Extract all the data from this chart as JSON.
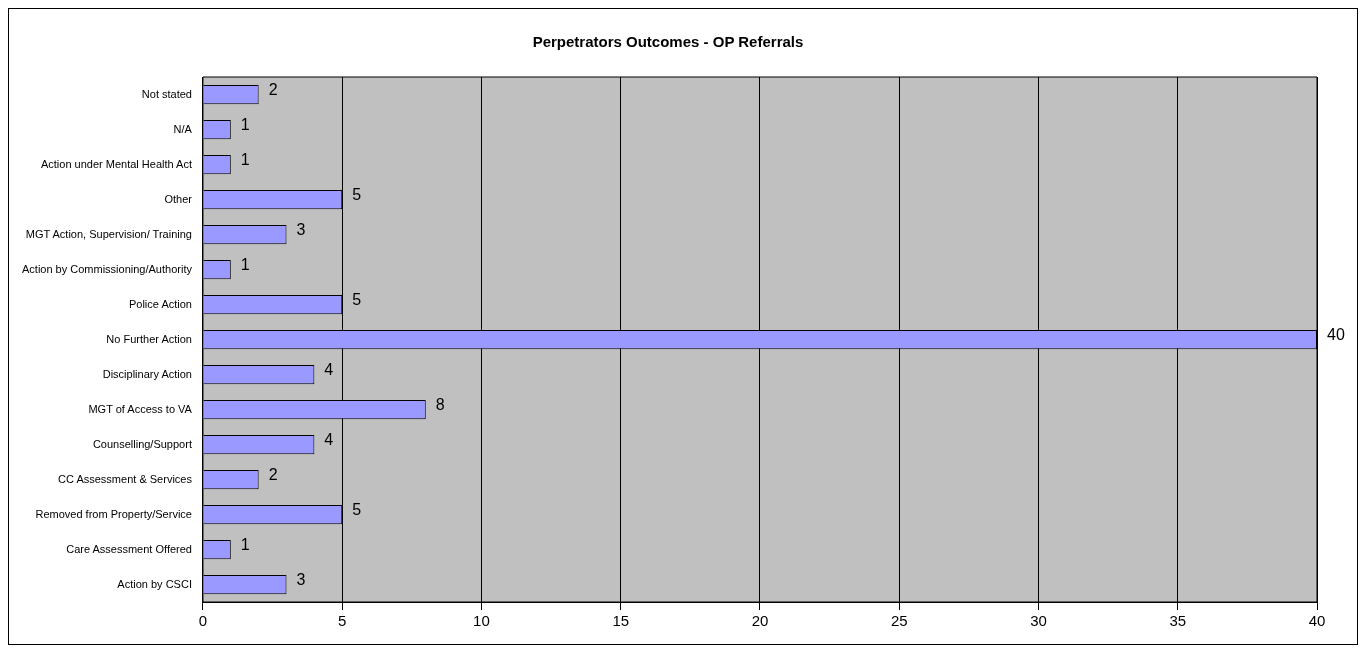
{
  "chart_data": {
    "type": "bar",
    "orientation": "horizontal",
    "title": "Perpetrators Outcomes - OP Referrals",
    "categories": [
      "Not stated",
      "N/A",
      "Action under Mental Health Act",
      "Other",
      "MGT Action, Supervision/ Training",
      "Action by Commissioning/Authority",
      "Police Action",
      "No Further Action",
      "Disciplinary Action",
      "MGT of Access to VA",
      "Counselling/Support",
      "CC Assessment & Services",
      "Removed from Property/Service",
      "Care Assessment Offered",
      "Action by CSCI"
    ],
    "values": [
      2,
      1,
      1,
      5,
      3,
      1,
      5,
      40,
      4,
      8,
      4,
      2,
      5,
      1,
      3
    ],
    "color": "#9999ff",
    "xlim": [
      0,
      40
    ],
    "xticks": [
      0,
      5,
      10,
      15,
      20,
      25,
      30,
      35,
      40
    ],
    "grid": "x",
    "data_labels": true,
    "legend": false
  }
}
